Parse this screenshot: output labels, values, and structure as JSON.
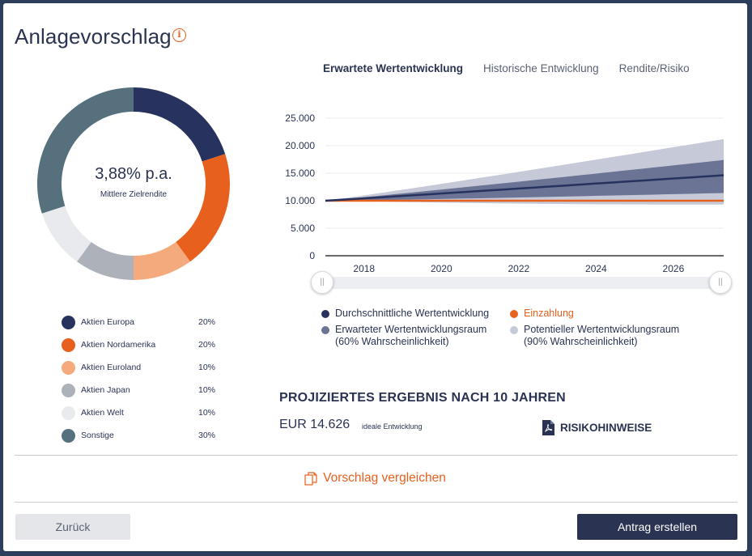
{
  "title": "Anlagevorschlag",
  "donut": {
    "value": "3,88% p.a.",
    "label": "Mittlere Zielrendite",
    "segments": [
      {
        "name": "Aktien Europa",
        "pct_label": "20%",
        "share": 20,
        "color": "#27325e"
      },
      {
        "name": "Aktien Nordamerika",
        "pct_label": "20%",
        "share": 20,
        "color": "#e8601e"
      },
      {
        "name": "Aktien Euroland",
        "pct_label": "10%",
        "share": 10,
        "color": "#f4aa7d"
      },
      {
        "name": "Aktien Japan",
        "pct_label": "10%",
        "share": 10,
        "color": "#adb1b9"
      },
      {
        "name": "Aktien Welt",
        "pct_label": "10%",
        "share": 10,
        "color": "#e8eaee"
      },
      {
        "name": "Sonstige",
        "pct_label": "30%",
        "share": 30,
        "color": "#56707e"
      }
    ]
  },
  "tabs": [
    {
      "label": "Erwartete Wertentwicklung",
      "active": true
    },
    {
      "label": "Historische Entwicklung",
      "active": false
    },
    {
      "label": "Rendite/Risiko",
      "active": false
    }
  ],
  "chart_data": {
    "type": "area",
    "x_start": 2017,
    "x_end": 2027.3,
    "x_ticks": [
      "2018",
      "2020",
      "2022",
      "2024",
      "2026"
    ],
    "x_tick_values": [
      2018,
      2020,
      2022,
      2024,
      2026
    ],
    "y_ticks": [
      "0",
      "5.000",
      "10.000",
      "15.000",
      "20.000",
      "25.000"
    ],
    "y_tick_values": [
      0,
      5000,
      10000,
      15000,
      20000,
      25000
    ],
    "ylim": [
      0,
      25000
    ],
    "series": [
      {
        "name": "Durchschnittliche Wertentwicklung",
        "start": 10000,
        "end": 14626,
        "color": "#27325e"
      },
      {
        "name": "Einzahlung",
        "start": 10000,
        "end": 10000,
        "color": "#e8601e"
      },
      {
        "name": "Erwarteter Wertentwicklungsraum (60% Wahrscheinlichkeit)",
        "upper_end": 17400,
        "lower_end": 11400,
        "color": "#6b7495"
      },
      {
        "name": "Potentieller Wertentwicklungsraum (90% Wahrscheinlichkeit)",
        "upper_end": 21200,
        "lower_end": 9300,
        "color": "#c6cad8"
      }
    ]
  },
  "chart_legend": [
    {
      "text": "Durchschnittliche Wertentwicklung",
      "color": "#27325e"
    },
    {
      "text": "Einzahlung",
      "color": "#e8601e"
    },
    {
      "text": "Erwarteter Wertentwicklungsraum",
      "text2": "(60% Wahrscheinlichkeit)",
      "color": "#6b7495"
    },
    {
      "text": "Potentieller Wertentwicklungsraum",
      "text2": "(90% Wahrscheinlichkeit)",
      "color": "#c6cad8"
    }
  ],
  "slider": {
    "left_handle": "||",
    "right_handle": "||"
  },
  "result": {
    "heading": "PROJIZIERTES ERGEBNIS NACH 10 JAHREN",
    "value": "EUR 14.626",
    "note": "ideale Entwicklung",
    "risk_label": "RISIKOHINWEISE"
  },
  "compare_label": "Vorschlag vergleichen",
  "buttons": {
    "back": "Zurück",
    "submit": "Antrag erstellen"
  }
}
